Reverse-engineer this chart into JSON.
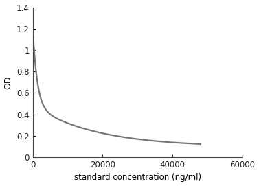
{
  "title": "",
  "xlabel": "standard concentration (ng/ml)",
  "ylabel": "OD",
  "xlim": [
    0,
    60000
  ],
  "ylim": [
    0,
    1.4
  ],
  "xticks": [
    0,
    20000,
    40000,
    60000
  ],
  "yticks": [
    0,
    0.2,
    0.4,
    0.6,
    0.8,
    1.0,
    1.2,
    1.4
  ],
  "xtick_labels": [
    "0",
    "20000",
    "40000",
    "60000"
  ],
  "ytick_labels": [
    "0",
    "0.2",
    "0.4",
    "0.6",
    "0.8",
    "1",
    "1.2",
    "1.4"
  ],
  "curve_color": "#777777",
  "curve_linewidth": 1.6,
  "background_color": "#ffffff",
  "y_max": 1.2,
  "y_min": 0.105,
  "x_max": 48000,
  "k": 800,
  "n": 0.55
}
